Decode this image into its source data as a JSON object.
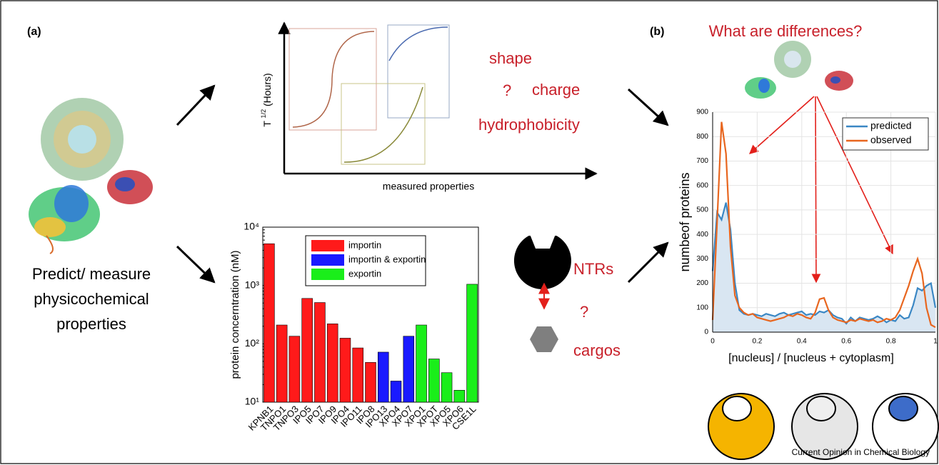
{
  "panel_labels": [
    "(a)",
    "(b)"
  ],
  "left_text": [
    "Predict/ measure",
    "physicochemical",
    "properties"
  ],
  "schematic": {
    "y_label": [
      "T",
      "1/2",
      "(Hours)"
    ],
    "x_label": "measured properties"
  },
  "question_texts": {
    "shape": "shape",
    "mark": "?",
    "charge": "charge",
    "hydrophobicity": "hydrophobicity"
  },
  "ntr_labels": {
    "ntrs": "NTRs",
    "mark": "?",
    "cargos": "cargos"
  },
  "panel_b_title": "What are differences?",
  "footer": "Current Opinion in Chemical Biology",
  "chart_data": [
    {
      "type": "bar",
      "y_label": "protein concerntration (nM)",
      "log_scale": true,
      "grid": false,
      "categories": [
        "KPNB1",
        "TNPO1",
        "TNPO3",
        "IPO5",
        "IPO7",
        "IPO9",
        "IPO4",
        "IPO11",
        "IPO8",
        "IPO13",
        "XPO4",
        "XPO7",
        "XPO1",
        "XPOT",
        "XPO5",
        "XPO6",
        "CSE1L"
      ],
      "series": [
        {
          "name": "importin",
          "color": "#ff1a1a",
          "values": [
            5200,
            210,
            135,
            600,
            510,
            220,
            125,
            85,
            48,
            null,
            null,
            null,
            null,
            null,
            null,
            null,
            null
          ]
        },
        {
          "name": "importin & exportin",
          "color": "#1a1aff",
          "values": [
            null,
            null,
            null,
            null,
            null,
            null,
            null,
            null,
            null,
            72,
            23,
            135,
            null,
            null,
            null,
            null,
            null
          ]
        },
        {
          "name": "exportin",
          "color": "#1aee1a",
          "values": [
            null,
            null,
            null,
            null,
            null,
            null,
            null,
            null,
            null,
            null,
            null,
            null,
            210,
            55,
            32,
            16,
            1050
          ]
        }
      ],
      "ylim": [
        10,
        10000
      ],
      "yticks": [
        {
          "value": 10,
          "label": "10¹"
        },
        {
          "value": 100,
          "label": "10²"
        },
        {
          "value": 1000,
          "label": "10³"
        },
        {
          "value": 10000,
          "label": "10⁴"
        }
      ]
    },
    {
      "type": "line",
      "y_label": "numbeof proteins",
      "x_label": "[nucleus] / [nucleus + cytoplasm]",
      "grid": true,
      "x": [
        0,
        0.02,
        0.04,
        0.06,
        0.08,
        0.1,
        0.12,
        0.14,
        0.16,
        0.18,
        0.2,
        0.22,
        0.24,
        0.26,
        0.28,
        0.3,
        0.32,
        0.34,
        0.36,
        0.38,
        0.4,
        0.42,
        0.44,
        0.46,
        0.48,
        0.5,
        0.52,
        0.54,
        0.56,
        0.58,
        0.6,
        0.62,
        0.64,
        0.66,
        0.68,
        0.7,
        0.72,
        0.74,
        0.76,
        0.78,
        0.8,
        0.82,
        0.84,
        0.86,
        0.88,
        0.9,
        0.92,
        0.94,
        0.96,
        0.98,
        1
      ],
      "series": [
        {
          "name": "predicted",
          "color": "#3a87c4",
          "fill": "#d9e6f2",
          "values": [
            250,
            490,
            460,
            530,
            420,
            200,
            90,
            75,
            70,
            75,
            70,
            65,
            75,
            70,
            65,
            75,
            80,
            70,
            75,
            80,
            85,
            70,
            75,
            70,
            85,
            80,
            90,
            70,
            60,
            55,
            35,
            60,
            45,
            60,
            55,
            50,
            55,
            65,
            55,
            40,
            50,
            45,
            70,
            55,
            60,
            110,
            180,
            170,
            190,
            200,
            100
          ]
        },
        {
          "name": "observed",
          "color": "#e8661f",
          "values": [
            50,
            450,
            860,
            730,
            350,
            150,
            100,
            80,
            70,
            75,
            60,
            55,
            50,
            45,
            50,
            55,
            60,
            70,
            65,
            75,
            70,
            60,
            55,
            80,
            135,
            140,
            90,
            60,
            50,
            45,
            40,
            50,
            45,
            55,
            50,
            45,
            50,
            40,
            45,
            55,
            50,
            60,
            90,
            140,
            190,
            250,
            300,
            240,
            100,
            30,
            20
          ]
        }
      ],
      "xlim": [
        0,
        1
      ],
      "xticks": [
        0,
        0.2,
        0.4,
        0.6,
        0.8,
        1
      ],
      "ylim": [
        0,
        900
      ],
      "yticks": [
        0,
        100,
        200,
        300,
        400,
        500,
        600,
        700,
        800,
        900
      ]
    }
  ]
}
